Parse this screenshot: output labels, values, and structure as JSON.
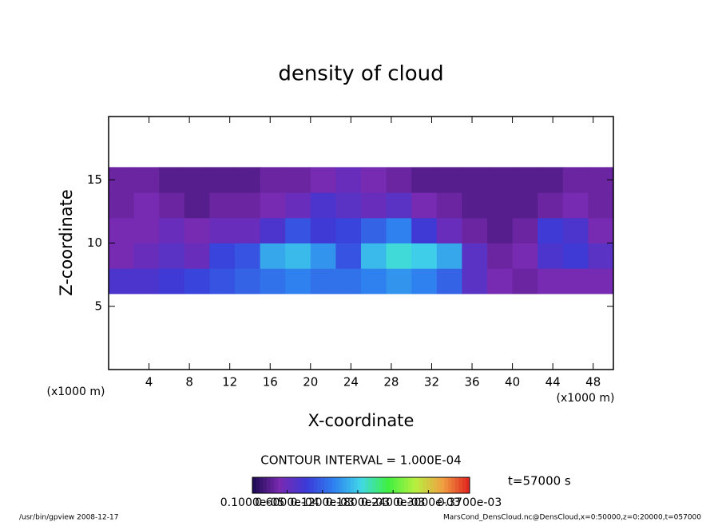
{
  "chart_data": {
    "type": "heatmap",
    "title": "density of cloud",
    "xlabel": "X-coordinate",
    "ylabel": "Z-coordinate",
    "x_unit_left": "(x1000 m)",
    "x_unit_right": "(x1000 m)",
    "xlim": [
      0,
      50
    ],
    "ylim": [
      0,
      20
    ],
    "xticks": [
      4,
      8,
      12,
      16,
      20,
      24,
      28,
      32,
      36,
      40,
      44,
      48
    ],
    "yticks": [
      5,
      10,
      15
    ],
    "x": [
      1.25,
      3.75,
      6.25,
      8.75,
      11.25,
      13.75,
      16.25,
      18.75,
      21.25,
      23.75,
      26.25,
      28.75,
      31.25,
      33.75,
      36.25,
      38.75,
      41.25,
      43.75,
      46.25,
      48.75
    ],
    "z": [
      1,
      3,
      5,
      7,
      9,
      11,
      13,
      15,
      17,
      19
    ],
    "values": [
      [
        null,
        null,
        null,
        null,
        null,
        null,
        null,
        null,
        null,
        null,
        null,
        null,
        null,
        null,
        null,
        null,
        null,
        null,
        null,
        null
      ],
      [
        null,
        null,
        null,
        null,
        null,
        null,
        null,
        null,
        null,
        null,
        null,
        null,
        null,
        null,
        null,
        null,
        null,
        null,
        null,
        null
      ],
      [
        null,
        null,
        null,
        null,
        null,
        null,
        null,
        null,
        null,
        null,
        null,
        null,
        null,
        null,
        null,
        null,
        null,
        null,
        null,
        null
      ],
      [
        8e-05,
        8e-05,
        9e-05,
        0.0001,
        0.00011,
        0.00012,
        0.00013,
        0.00014,
        0.00013,
        0.00013,
        0.00014,
        0.00015,
        0.00014,
        0.00012,
        7e-05,
        5e-05,
        4e-05,
        5e-05,
        5e-05,
        5e-05
      ],
      [
        5e-05,
        6e-05,
        7e-05,
        6e-05,
        0.0001,
        0.00011,
        0.00016,
        0.00017,
        0.00015,
        0.00011,
        0.00017,
        0.00019,
        0.00018,
        0.00016,
        7e-05,
        4e-05,
        5e-05,
        8e-05,
        9e-05,
        7e-05
      ],
      [
        5e-05,
        5e-05,
        6e-05,
        5e-05,
        6e-05,
        6e-05,
        8e-05,
        0.00011,
        9e-05,
        0.0001,
        0.00012,
        0.00014,
        9e-05,
        6e-05,
        4e-05,
        3e-05,
        4e-05,
        9e-05,
        8e-05,
        5e-05
      ],
      [
        4e-05,
        5e-05,
        4e-05,
        3e-05,
        4e-05,
        4e-05,
        5e-05,
        6e-05,
        8e-05,
        7e-05,
        6e-05,
        7e-05,
        5e-05,
        4e-05,
        3e-05,
        3e-05,
        3e-05,
        4e-05,
        5e-05,
        4e-05
      ],
      [
        4e-05,
        4e-05,
        3e-05,
        3e-05,
        3e-05,
        3e-05,
        4e-05,
        4e-05,
        5e-05,
        6e-05,
        5e-05,
        4e-05,
        3e-05,
        3e-05,
        3e-05,
        3e-05,
        3e-05,
        3e-05,
        4e-05,
        4e-05
      ],
      [
        null,
        null,
        null,
        null,
        null,
        null,
        null,
        null,
        null,
        null,
        null,
        null,
        null,
        null,
        null,
        null,
        null,
        null,
        null,
        null
      ],
      [
        null,
        null,
        null,
        null,
        null,
        null,
        null,
        null,
        null,
        null,
        null,
        null,
        null,
        null,
        null,
        null,
        null,
        null,
        null,
        null
      ]
    ],
    "colors": [
      "#1a0a50",
      "#7a2ab0",
      "#3a3ad8",
      "#2f80f0",
      "#40d8e8",
      "#40f040",
      "#b8f040",
      "#f0a040",
      "#e02020"
    ],
    "clim": [
      1e-06,
      0.00037
    ],
    "colorbar_ticks": [
      {
        "value": 1e-06,
        "label": "0.1000e-05"
      },
      {
        "value": 6e-05,
        "label": "0.6000e-04"
      },
      {
        "value": 0.00012,
        "label": "0.1200e-03"
      },
      {
        "value": 0.00018,
        "label": "0.1800e-03"
      },
      {
        "value": 0.00024,
        "label": "0.2400e-03"
      },
      {
        "value": 0.0003,
        "label": "0.3000e-03"
      },
      {
        "value": 0.00037,
        "label": "0.3700e-03"
      }
    ],
    "contour_note": "CONTOUR INTERVAL = 1.000E-04",
    "time_label": "t=57000 s",
    "footer_left": "/usr/bin/gpview   2008-12-17",
    "footer_right": "MarsCond_DensCloud.nc@DensCloud,x=0:50000,z=0:20000,t=057000"
  }
}
